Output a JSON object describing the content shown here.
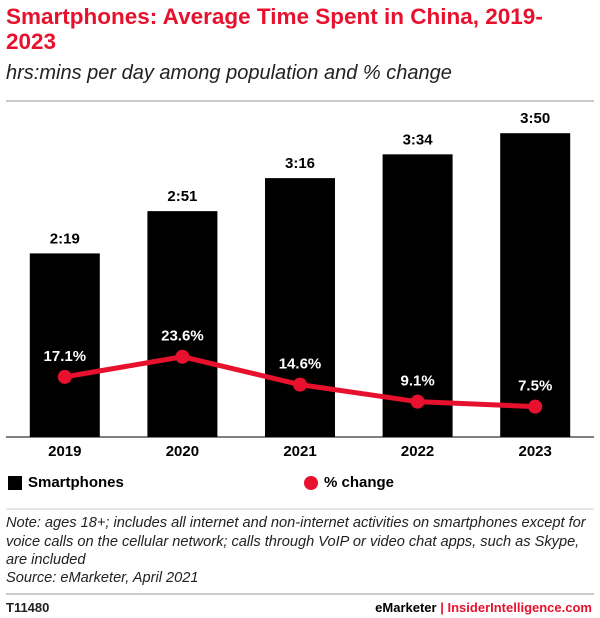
{
  "chart_data": {
    "type": "bar",
    "title": "Smartphones: Average Time Spent in China, 2019-2023",
    "subtitle": "hrs:mins per day among population and % change",
    "categories": [
      "2019",
      "2020",
      "2021",
      "2022",
      "2023"
    ],
    "series": [
      {
        "name": "Smartphones",
        "type": "bar",
        "color": "#000000",
        "values": [
          139,
          171,
          196,
          214,
          230
        ],
        "value_labels": [
          "2:19",
          "2:51",
          "3:16",
          "3:34",
          "3:50"
        ]
      },
      {
        "name": "% change",
        "type": "line",
        "axis": "y2",
        "color": "#e8112d",
        "values": [
          17.1,
          23.6,
          14.6,
          9.1,
          7.5
        ],
        "value_labels": [
          "17.1%",
          "23.6%",
          "14.6%",
          "9.1%",
          "7.5%"
        ]
      }
    ],
    "ylim": [
      0,
      240
    ],
    "y2lim": [
      -2.3,
      100
    ],
    "legend": "bottom-left",
    "note": "Note: ages 18+; includes all internet and non-internet activities on smartphones except for voice calls on the cellular network; calls through VoIP or video chat apps, such as Skype, are included",
    "source": "Source: eMarketer, April 2021",
    "id": "T11480",
    "brand": [
      "eMarketer",
      "|",
      "InsiderIntelligence.com"
    ]
  }
}
